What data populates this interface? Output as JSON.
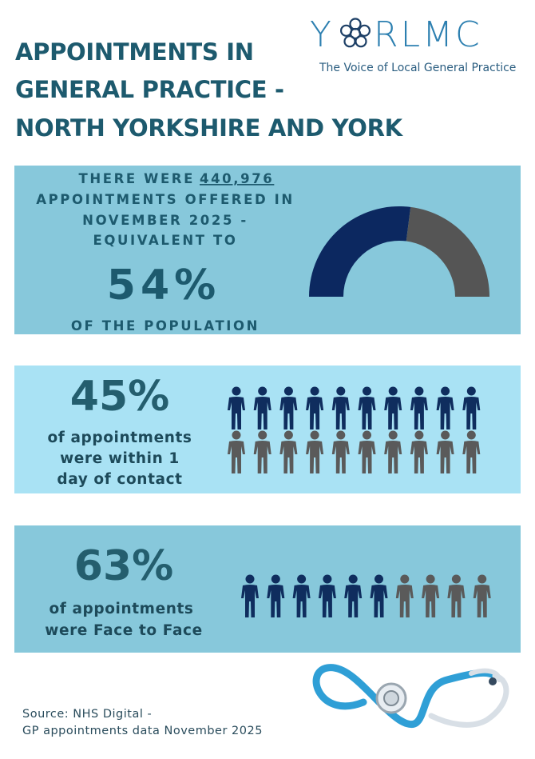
{
  "logo": {
    "left": "Y",
    "right": "RLMC",
    "tagline": "The Voice of Local General Practice"
  },
  "title": [
    "APPOINTMENTS IN",
    "GENERAL PRACTICE -",
    "NORTH YORKSHIRE AND YORK"
  ],
  "panel1": {
    "lead": "THERE WERE",
    "count": "440,976",
    "lines": [
      "APPOINTMENTS OFFERED IN",
      "NOVEMBER 2025 -",
      "EQUIVALENT TO"
    ],
    "percent": {
      "value": 54,
      "label": "54%"
    },
    "tail": "OF THE POPULATION",
    "colors": [
      "#0c2860",
      "#555555"
    ]
  },
  "panel2": {
    "percent": "45%",
    "lines": [
      "of appointments",
      "were within 1",
      "day of contact"
    ]
  },
  "panel3": {
    "percent": "63%",
    "lines": [
      "of appointments",
      "were Face to Face"
    ]
  },
  "source": [
    "Source: NHS Digital -",
    "GP appointments data November 2025"
  ]
}
